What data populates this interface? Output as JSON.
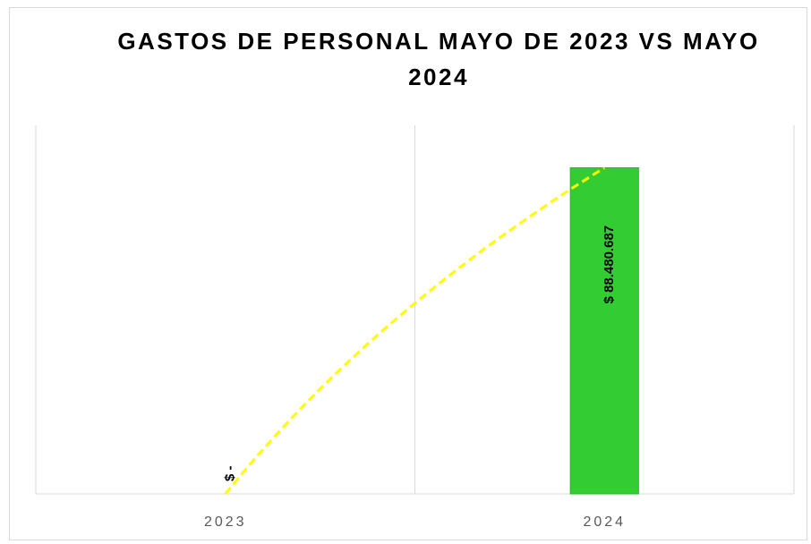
{
  "chart_data": {
    "type": "bar",
    "title": "GASTOS DE PERSONAL MAYO DE 2023 VS MAYO 2024",
    "categories": [
      "2023",
      "2024"
    ],
    "values": [
      0,
      88480687
    ],
    "value_labels": [
      "$ -",
      "$ 88.480.687"
    ],
    "color": "#33cc33",
    "ylim": [
      0,
      100000000
    ],
    "grid": true,
    "trendline": {
      "type": "logarithmic",
      "color": "#ffff00"
    }
  }
}
